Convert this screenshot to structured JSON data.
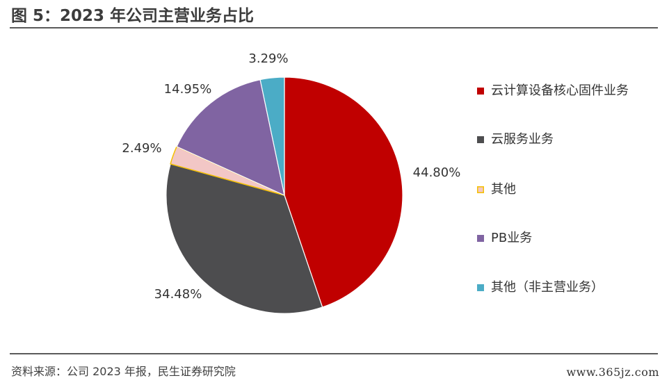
{
  "title": "图 5：2023 年公司主营业务占比",
  "source": "资料来源：公司 2023 年报，民生证券研究院",
  "watermark": "www.365jz.com",
  "chart_data": {
    "type": "pie",
    "title": "图 5：2023 年公司主营业务占比",
    "legend_position": "right",
    "slices": [
      {
        "name": "云计算设备核心固件业务",
        "value": 44.8,
        "label": "44.80%",
        "color": "#c00000"
      },
      {
        "name": "云服务业务",
        "value": 34.48,
        "label": "34.48%",
        "color": "#4d4d4f"
      },
      {
        "name": "其他",
        "value": 2.49,
        "label": "2.49%",
        "color": "#f2c7c6",
        "edge": "#f5c000"
      },
      {
        "name": "PB业务",
        "value": 14.95,
        "label": "14.95%",
        "color": "#8064a2"
      },
      {
        "name": "其他（非主营业务）",
        "value": 3.29,
        "label": "3.29%",
        "color": "#4bacc6"
      }
    ]
  }
}
